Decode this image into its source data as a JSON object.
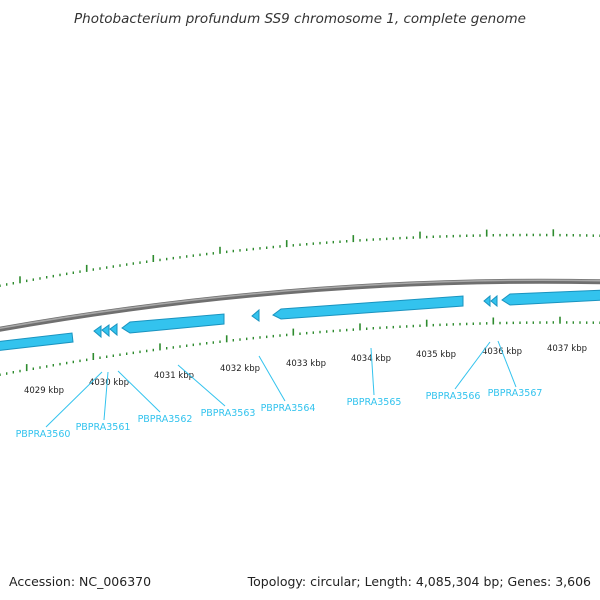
{
  "title": "Photobacterium profundum SS9 chromosome 1, complete genome",
  "footer": {
    "accession": "Accession: NC_006370",
    "summary": "Topology: circular; Length: 4,085,304 bp; Genes: 3,606"
  },
  "colors": {
    "backbone": "#7d7d7d",
    "gene_fill": "#33c3ee",
    "gene_edge": "#1a93bf",
    "tick": "#2e8b2e",
    "label": "#33c3ee"
  },
  "ruler_labels": [
    "4029 kbp",
    "4030 kbp",
    "4031 kbp",
    "4032 kbp",
    "4033 kbp",
    "4034 kbp",
    "4035 kbp",
    "4036 kbp",
    "4037 kbp"
  ],
  "gene_labels": [
    "PBPRA3560",
    "PBPRA3561",
    "PBPRA3562",
    "PBPRA3563",
    "PBPRA3564",
    "PBPRA3565",
    "PBPRA3566",
    "PBPRA3567"
  ]
}
